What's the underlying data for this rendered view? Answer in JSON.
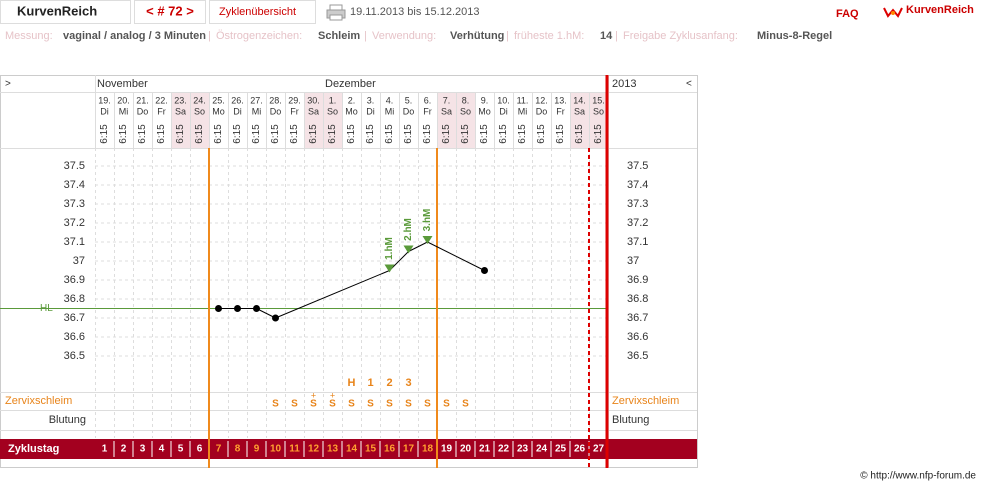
{
  "header": {
    "brand": "KurvenReich",
    "cycle_nav": "< # 72 >",
    "overview": "Zyklenübersicht",
    "date_range": "19.11.2013 bis 15.12.2013",
    "faq": "FAQ",
    "logo": "KurvenReich"
  },
  "info": {
    "separator": "|",
    "items": [
      {
        "label": "Messung:",
        "value": "vaginal / analog / 3 Minuten"
      },
      {
        "label": "Östrogenzeichen:",
        "value": "Schleim"
      },
      {
        "label": "Verwendung:",
        "value": "Verhütung"
      },
      {
        "label": "früheste 1.hM:",
        "value": "14"
      },
      {
        "label": "Freigabe Zyklusanfang:",
        "value": "Minus-8-Regel"
      }
    ]
  },
  "chart": {
    "type": "line",
    "nav_left": ">",
    "nav_right": "<",
    "year": "2013",
    "months": [
      "November",
      "Dezember"
    ],
    "days": [
      "19.",
      "20.",
      "21.",
      "22.",
      "23.",
      "24.",
      "25.",
      "26.",
      "27.",
      "28.",
      "29.",
      "30.",
      "1.",
      "2.",
      "3.",
      "4.",
      "5.",
      "6.",
      "7.",
      "8.",
      "9.",
      "10.",
      "11.",
      "12.",
      "13.",
      "14.",
      "15."
    ],
    "weekdays": [
      "Di",
      "Mi",
      "Do",
      "Fr",
      "Sa",
      "So",
      "Mo",
      "Di",
      "Mi",
      "Do",
      "Fr",
      "Sa",
      "So",
      "Mo",
      "Di",
      "Mi",
      "Do",
      "Fr",
      "Sa",
      "So",
      "Mo",
      "Di",
      "Mi",
      "Do",
      "Fr",
      "Sa",
      "So"
    ],
    "time": "6:15",
    "ylim": [
      36.4,
      37.6
    ],
    "yticks": [
      36.5,
      36.6,
      36.7,
      36.8,
      36.9,
      37,
      37.1,
      37.2,
      37.3,
      37.4,
      37.5
    ],
    "grid": true,
    "color": "#000000",
    "values": [
      null,
      null,
      null,
      null,
      null,
      null,
      36.75,
      36.75,
      36.75,
      36.7,
      null,
      null,
      null,
      null,
      null,
      36.95,
      37.05,
      37.1,
      null,
      null,
      36.95,
      null,
      null,
      null,
      null,
      null,
      null
    ],
    "hl": {
      "label": "HL",
      "value": 36.75,
      "color": "#5a9a3a"
    },
    "hm_labels": [
      null,
      null,
      null,
      null,
      null,
      null,
      null,
      null,
      null,
      null,
      null,
      null,
      null,
      null,
      null,
      "1.hM",
      "2.hM",
      "3.hM",
      null,
      null,
      null,
      null,
      null,
      null,
      null,
      null,
      null
    ],
    "hormone_row": [
      null,
      null,
      null,
      null,
      null,
      null,
      null,
      null,
      null,
      null,
      null,
      null,
      null,
      "H",
      "1",
      "2",
      "3",
      null,
      null,
      null,
      null,
      null,
      null,
      null,
      null,
      null,
      null
    ],
    "cervix_label": "Zervixschleim",
    "cervix": [
      null,
      null,
      null,
      null,
      null,
      null,
      null,
      null,
      null,
      "S",
      "S",
      "S",
      "S",
      "S",
      "S",
      "S",
      "S",
      "S",
      "S",
      "S",
      null,
      null,
      null,
      null,
      null,
      null,
      null
    ],
    "cervix_plus": [
      null,
      null,
      null,
      null,
      null,
      null,
      null,
      null,
      null,
      null,
      null,
      "+",
      "+",
      null,
      null,
      null,
      null,
      null,
      null,
      null,
      null,
      null,
      null,
      null,
      null,
      null,
      null
    ],
    "bleeding_label": "Blutung",
    "cycle_label": "Zyklustag",
    "cycle_days": [
      1,
      2,
      3,
      4,
      5,
      6,
      7,
      8,
      9,
      10,
      11,
      12,
      13,
      14,
      15,
      16,
      17,
      18,
      19,
      20,
      21,
      22,
      23,
      24,
      25,
      26,
      27
    ]
  },
  "footer": "© http://www.nfp-forum.de"
}
